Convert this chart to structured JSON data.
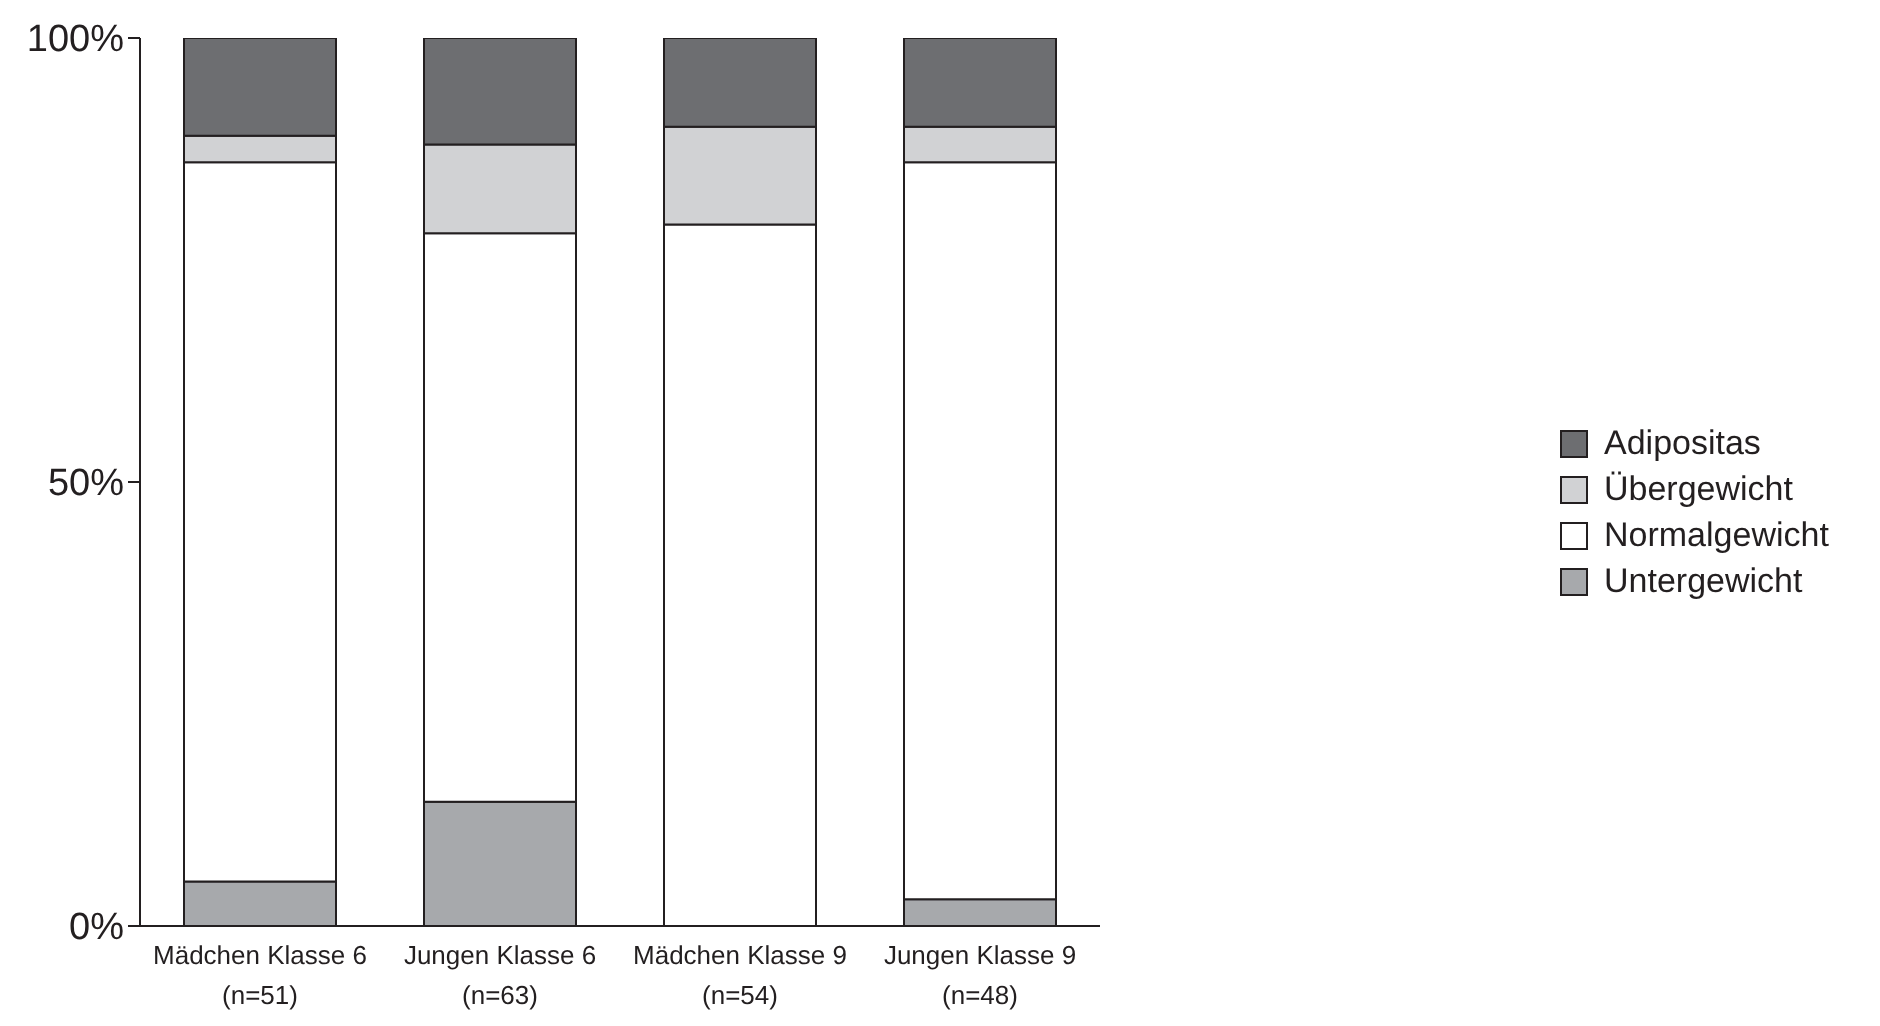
{
  "chart_data": {
    "type": "bar",
    "stacked": true,
    "categories": [
      "Mädchen Klasse 6\n(n=51)",
      "Jungen Klasse 6\n(n=63)",
      "Mädchen Klasse 9\n(n=54)",
      "Jungen Klasse 9\n(n=48)"
    ],
    "series": [
      {
        "name": "Untergewicht",
        "color": "#a7a9ac",
        "values": [
          5,
          14,
          0,
          3
        ]
      },
      {
        "name": "Normalgewicht",
        "color": "#ffffff",
        "values": [
          81,
          64,
          79,
          83
        ]
      },
      {
        "name": "Übergewicht",
        "color": "#d1d2d4",
        "values": [
          3,
          10,
          11,
          4
        ]
      },
      {
        "name": "Adipositas",
        "color": "#6d6e71",
        "values": [
          11,
          12,
          10,
          10
        ]
      }
    ],
    "ylim": [
      0,
      100
    ],
    "yticks": [
      {
        "value": 0,
        "label": "0%"
      },
      {
        "value": 50,
        "label": "50%"
      },
      {
        "value": 100,
        "label": "100%"
      }
    ],
    "legend": "right"
  }
}
